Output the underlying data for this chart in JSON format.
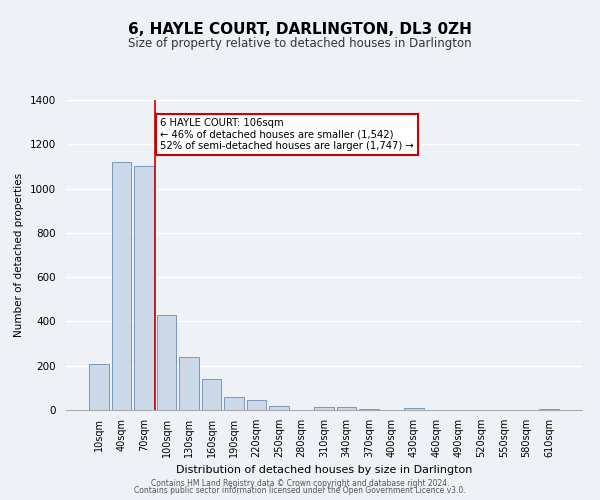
{
  "title": "6, HAYLE COURT, DARLINGTON, DL3 0ZH",
  "subtitle": "Size of property relative to detached houses in Darlington",
  "xlabel": "Distribution of detached houses by size in Darlington",
  "ylabel": "Number of detached properties",
  "bar_labels": [
    "10sqm",
    "40sqm",
    "70sqm",
    "100sqm",
    "130sqm",
    "160sqm",
    "190sqm",
    "220sqm",
    "250sqm",
    "280sqm",
    "310sqm",
    "340sqm",
    "370sqm",
    "400sqm",
    "430sqm",
    "460sqm",
    "490sqm",
    "520sqm",
    "550sqm",
    "580sqm",
    "610sqm"
  ],
  "bar_values": [
    210,
    1120,
    1100,
    430,
    240,
    140,
    60,
    45,
    20,
    0,
    15,
    12,
    5,
    0,
    8,
    0,
    0,
    0,
    0,
    0,
    5
  ],
  "bar_color": "#ccd9e8",
  "bar_edge_color": "#7799bb",
  "vline_color": "#cc0000",
  "ylim": [
    0,
    1400
  ],
  "yticks": [
    0,
    200,
    400,
    600,
    800,
    1000,
    1200,
    1400
  ],
  "annotation_title": "6 HAYLE COURT: 106sqm",
  "annotation_line1": "← 46% of detached houses are smaller (1,542)",
  "annotation_line2": "52% of semi-detached houses are larger (1,747) →",
  "annotation_box_color": "#ffffff",
  "annotation_box_edge": "#cc0000",
  "footer1": "Contains HM Land Registry data © Crown copyright and database right 2024.",
  "footer2": "Contains public sector information licensed under the Open Government Licence v3.0.",
  "bg_color": "#eef2f7",
  "grid_color": "#ffffff",
  "title_fontsize": 11,
  "subtitle_fontsize": 9
}
